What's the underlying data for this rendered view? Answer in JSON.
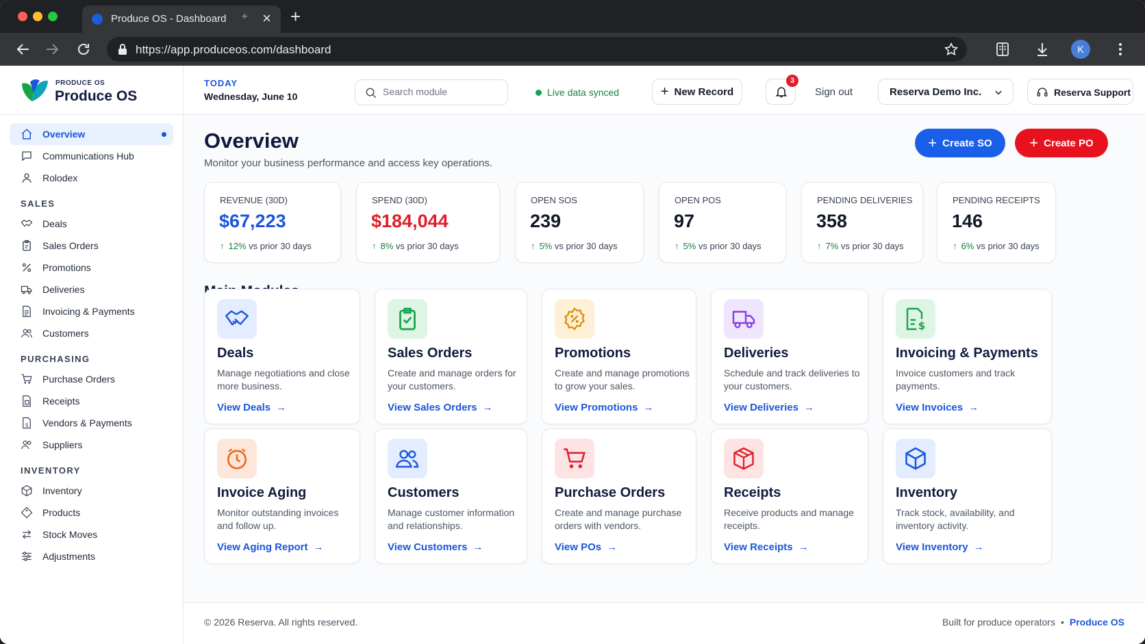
{
  "browser": {
    "tab_title": "Produce OS - Dashboard",
    "url": "https://app.produceos.com/dashboard",
    "profile_initial": "K"
  },
  "brand": {
    "small": "PRODUCE OS",
    "name": "Produce OS"
  },
  "sidebar": {
    "top": [
      {
        "label": "Overview",
        "icon": "home-icon",
        "active": true
      },
      {
        "label": "Communications Hub",
        "icon": "chat-icon"
      },
      {
        "label": "Rolodex",
        "icon": "person-icon"
      }
    ],
    "sections": [
      {
        "title": "SALES",
        "items": [
          {
            "label": "Deals",
            "icon": "handshake-icon"
          },
          {
            "label": "Sales Orders",
            "icon": "clipboard-icon"
          },
          {
            "label": "Promotions",
            "icon": "percent-icon"
          },
          {
            "label": "Deliveries",
            "icon": "truck-icon"
          },
          {
            "label": "Invoicing & Payments",
            "icon": "invoice-icon"
          },
          {
            "label": "Customers",
            "icon": "users-icon"
          }
        ]
      },
      {
        "title": "PURCHASING",
        "items": [
          {
            "label": "Purchase Orders",
            "icon": "cart-icon"
          },
          {
            "label": "Receipts",
            "icon": "receipt-icon"
          },
          {
            "label": "Vendors & Payments",
            "icon": "vendor-icon"
          },
          {
            "label": "Suppliers",
            "icon": "suppliers-icon"
          }
        ]
      },
      {
        "title": "INVENTORY",
        "items": [
          {
            "label": "Inventory",
            "icon": "box-icon"
          },
          {
            "label": "Products",
            "icon": "tag-icon"
          },
          {
            "label": "Stock Moves",
            "icon": "transfer-icon"
          },
          {
            "label": "Adjustments",
            "icon": "sliders-icon"
          }
        ]
      }
    ]
  },
  "topbar": {
    "today_label": "TODAY",
    "today_date": "Wednesday, June 10",
    "search_placeholder": "Search module",
    "live_status": "Live data synced",
    "new_record": "New Record",
    "notifications_count": "3",
    "sign_out": "Sign out",
    "company": "Reserva Demo Inc.",
    "support": "Reserva Support"
  },
  "overview": {
    "title": "Overview",
    "subtitle": "Monitor your business performance and access key operations.",
    "create_so": "Create SO",
    "create_po": "Create PO"
  },
  "kpis": [
    {
      "label": "REVENUE (30D)",
      "value": "$67,223",
      "pct": "12%",
      "suffix": " vs prior 30 days",
      "color": "#1a56db"
    },
    {
      "label": "SPEND (30D)",
      "value": "$184,044",
      "pct": "8%",
      "suffix": " vs prior 30 days",
      "color": "#e11d2a"
    },
    {
      "label": "OPEN SOS",
      "value": "239",
      "pct": "5%",
      "suffix": " vs prior 30 days",
      "color": "#111827"
    },
    {
      "label": "OPEN POS",
      "value": "97",
      "pct": "5%",
      "suffix": " vs prior 30 days",
      "color": "#111827"
    },
    {
      "label": "PENDING DELIVERIES",
      "value": "358",
      "pct": "7%",
      "suffix": " vs prior 30 days",
      "color": "#111827"
    },
    {
      "label": "PENDING RECEIPTS",
      "value": "146",
      "pct": "6%",
      "suffix": " vs prior 30 days",
      "color": "#111827"
    }
  ],
  "modules_title": "Main Modules",
  "modules": [
    {
      "title": "Deals",
      "desc": "Manage negotiations and close more business.",
      "link": "View Deals",
      "icon": "handshake-icon",
      "bg": "#e3edff",
      "fg": "#1a56db"
    },
    {
      "title": "Sales Orders",
      "desc": "Create and manage orders for your customers.",
      "link": "View Sales Orders",
      "icon": "clipboard-icon",
      "bg": "#def5e6",
      "fg": "#16a34a"
    },
    {
      "title": "Promotions",
      "desc": "Create and manage promotions to grow your sales.",
      "link": "View Promotions",
      "icon": "promo-badge-icon",
      "bg": "#fdf0d6",
      "fg": "#e08a00"
    },
    {
      "title": "Deliveries",
      "desc": "Schedule and track deliveries to your customers.",
      "link": "View Deliveries",
      "icon": "truck-icon",
      "bg": "#efe6fd",
      "fg": "#8b3fe0"
    },
    {
      "title": "Invoicing & Payments",
      "desc": "Invoice customers and track payments.",
      "link": "View Invoices",
      "icon": "invoice-dollar-icon",
      "bg": "#def5e6",
      "fg": "#16a34a"
    },
    {
      "title": "Invoice Aging",
      "desc": "Monitor outstanding invoices and follow up.",
      "link": "View Aging Report",
      "icon": "clock-icon",
      "bg": "#fde6da",
      "fg": "#f06a1d"
    },
    {
      "title": "Customers",
      "desc": "Manage customer information and relationships.",
      "link": "View Customers",
      "icon": "users-icon",
      "bg": "#e3edff",
      "fg": "#1a56db"
    },
    {
      "title": "Purchase Orders",
      "desc": "Create and manage purchase orders with vendors.",
      "link": "View POs",
      "icon": "cart-icon",
      "bg": "#fde3e3",
      "fg": "#e11d2a"
    },
    {
      "title": "Receipts",
      "desc": "Receive products and manage receipts.",
      "link": "View Receipts",
      "icon": "package-icon",
      "bg": "#fde3e3",
      "fg": "#e11d2a"
    },
    {
      "title": "Inventory",
      "desc": "Track stock, availability, and inventory activity.",
      "link": "View Inventory",
      "icon": "cube-icon",
      "bg": "#e3edff",
      "fg": "#1a56db"
    }
  ],
  "footer": {
    "copyright": "© 2026 Reserva. All rights reserved.",
    "built": "Built for produce operators",
    "brand": "Produce OS"
  }
}
